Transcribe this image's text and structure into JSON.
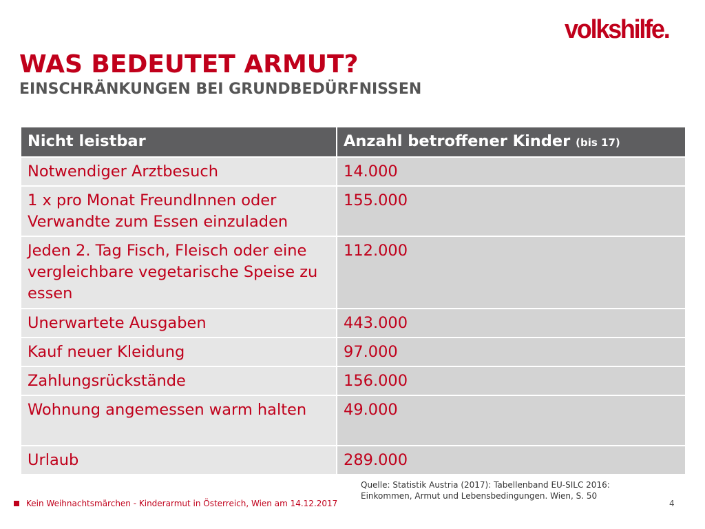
{
  "brand": {
    "logo_text": "volkshilfe.",
    "color": "#c0001b"
  },
  "slide": {
    "title": "WAS BEDEUTET ARMUT?",
    "subtitle": "EINSCHRÄNKUNGEN BEI GRUNDBEDÜRFNISSEN"
  },
  "table": {
    "header": {
      "col1": "Nicht leistbar",
      "col2": "Anzahl betroffener Kinder",
      "col2_small": "(bis 17)"
    },
    "rows": [
      {
        "label": "Notwendiger Arztbesuch",
        "value": "14.000"
      },
      {
        "label": "1 x pro Monat FreundInnen oder Verwandte zum Essen einzuladen",
        "value": "155.000"
      },
      {
        "label": "Jeden 2. Tag Fisch, Fleisch oder eine vergleichbare vegetarische Speise zu essen",
        "value": "112.000"
      },
      {
        "label": "Unerwartete Ausgaben",
        "value": "443.000"
      },
      {
        "label": "Kauf neuer Kleidung",
        "value": "97.000"
      },
      {
        "label": "Zahlungsrückstände",
        "value": "156.000"
      },
      {
        "label": "Wohnung angemessen warm halten",
        "value": "49.000"
      },
      {
        "label": "Urlaub",
        "value": "289.000"
      }
    ]
  },
  "source": {
    "line1": "Quelle: Statistik Austria (2017): Tabellenband EU-SILC 2016:",
    "line2": "Einkommen, Armut und Lebensbedingungen. Wien, S. 50"
  },
  "footer": {
    "text": "Kein Weihnachtsmärchen - Kinderarmut in Österreich, Wien am 14.12.2017",
    "page_number": "4"
  }
}
